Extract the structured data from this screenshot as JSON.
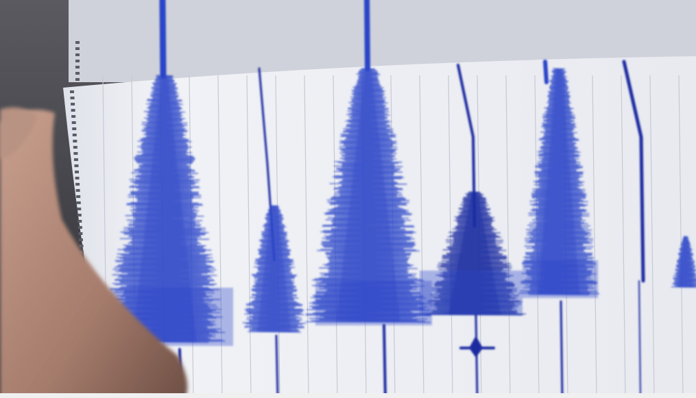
{
  "photo": {
    "subject": "seismograph-paper-with-earthquake-traces",
    "colors": {
      "paper": "#eef0f5",
      "trace": "#2b45c8",
      "trace_dark": "#1a2aa0",
      "grid": "#c9cbd4",
      "skin": "#b48a78",
      "background": "#3a3a40"
    }
  }
}
